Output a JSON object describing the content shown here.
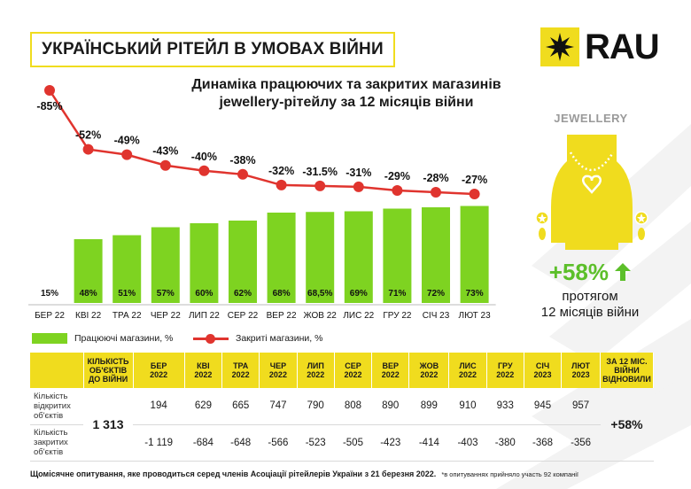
{
  "header": {
    "title": "УКРАЇНСЬКИЙ РІТЕЙЛ В УМОВАХ ВІЙНИ",
    "logo_text": "RAU",
    "subtitle_line1": "Динаміка працюючих та закритих магазинів",
    "subtitle_line2": "jewellery-рітейлу за 12 місяців війни"
  },
  "side": {
    "category": "JEWELLERY",
    "growth": "+58%",
    "growth_sub_line1": "протягом",
    "growth_sub_line2": "12 місяців війни"
  },
  "legend": {
    "bars": "Працюючі магазини, %",
    "line": "Закриті магазини, %"
  },
  "chart_data": {
    "type": "bar",
    "categories": [
      "БЕР 22",
      "КВІ 22",
      "ТРА 22",
      "ЧЕР 22",
      "ЛИП 22",
      "СЕР 22",
      "ВЕР 22",
      "ЖОВ 22",
      "ЛИС 22",
      "ГРУ 22",
      "СІЧ 23",
      "ЛЮТ 23"
    ],
    "series": [
      {
        "name": "Працюючі магазини, %",
        "values": [
          15,
          48,
          51,
          57,
          60,
          62,
          68,
          68.5,
          69,
          71,
          72,
          73
        ],
        "labels": [
          "15%",
          "48%",
          "51%",
          "57%",
          "60%",
          "62%",
          "68%",
          "68,5%",
          "69%",
          "71%",
          "72%",
          "73%"
        ],
        "color": "#7ed321"
      },
      {
        "name": "Закриті магазини, %",
        "values": [
          -85,
          -52,
          -49,
          -43,
          -40,
          -38,
          -32,
          -31.5,
          -31,
          -29,
          -28,
          -27
        ],
        "labels": [
          "-85%",
          "-52%",
          "-49%",
          "-43%",
          "-40%",
          "-38%",
          "-32%",
          "-31.5%",
          "-31%",
          "-29%",
          "-28%",
          "-27%"
        ],
        "color": "#e0342e"
      }
    ],
    "title": "Динаміка працюючих та закритих магазинів jewellery-рітейлу за 12 місяців війни",
    "xlabel": "",
    "ylabel": "",
    "ylim": [
      0,
      100
    ]
  },
  "table": {
    "head_first": [
      "КІЛЬКІСТЬ",
      "ОБ'ЄКТІВ",
      "ДО ВІЙНИ"
    ],
    "months": [
      [
        "БЕР",
        "2022"
      ],
      [
        "КВІ",
        "2022"
      ],
      [
        "ТРА",
        "2022"
      ],
      [
        "ЧЕР",
        "2022"
      ],
      [
        "ЛИП",
        "2022"
      ],
      [
        "СЕР",
        "2022"
      ],
      [
        "ВЕР",
        "2022"
      ],
      [
        "ЖОВ",
        "2022"
      ],
      [
        "ЛИС",
        "2022"
      ],
      [
        "ГРУ",
        "2022"
      ],
      [
        "СІЧ",
        "2023"
      ],
      [
        "ЛЮТ",
        "2023"
      ]
    ],
    "head_last": [
      "ЗА 12 МІС.",
      "ВІЙНИ",
      "ВІДНОВИЛИ"
    ],
    "row_open_label": [
      "Кількість",
      "відкритих",
      "об'єктів"
    ],
    "row_closed_label": [
      "Кількість",
      "закритих",
      "об'єктів"
    ],
    "prewar_total": "1 313",
    "open_values": [
      "194",
      "629",
      "665",
      "747",
      "790",
      "808",
      "890",
      "899",
      "910",
      "933",
      "945",
      "957"
    ],
    "closed_values": [
      "-1 119",
      "-684",
      "-648",
      "-566",
      "-523",
      "-505",
      "-423",
      "-414",
      "-403",
      "-380",
      "-368",
      "-356"
    ],
    "recovered": "+58%"
  },
  "footnote": {
    "main": "Щомісячне опитування, яке проводиться серед членів Асоціації рітейлерів України з 21 березня 2022.",
    "small": "*в опитуваннях прийняло участь 92 компанії"
  },
  "colors": {
    "accent": "#f0dc1e",
    "bars": "#7ed321",
    "line": "#e0342e",
    "growth": "#5cbf2a"
  }
}
